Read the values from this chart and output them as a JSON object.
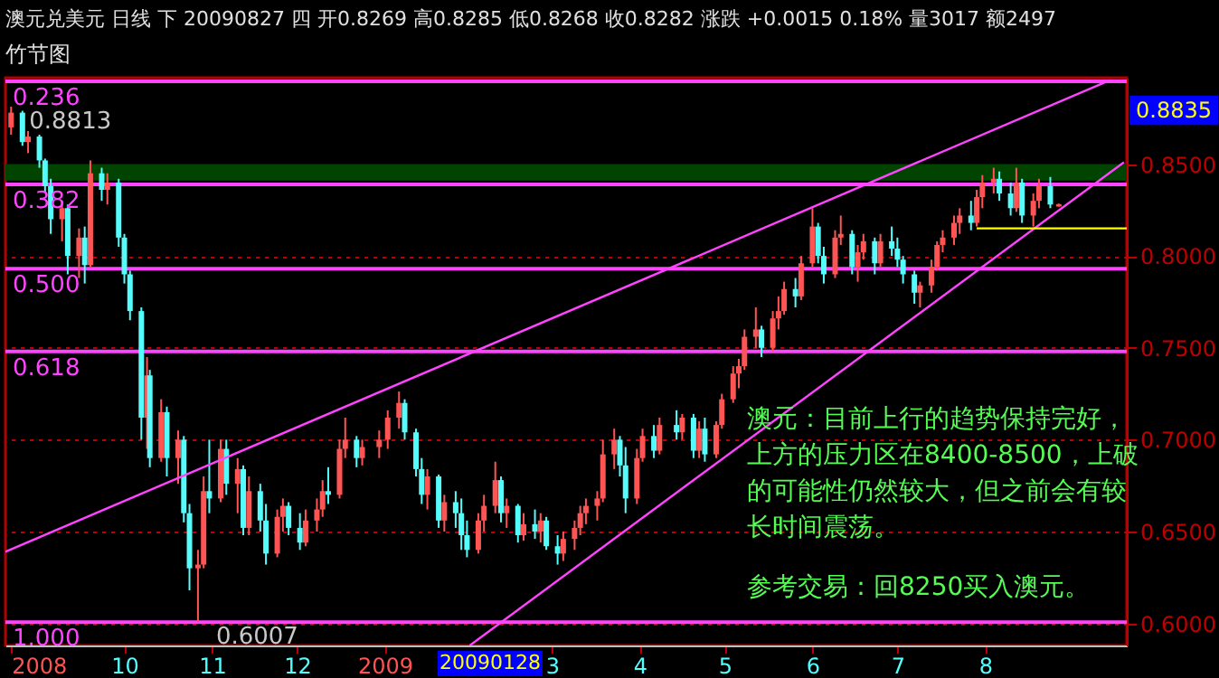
{
  "chart_data": {
    "type": "candlestick",
    "title": "澳元兑美元  日线  下  20090827  四  开0.8269 高0.8285 低0.8268 收0.8282 涨跌  +0.0015  0.18% 量3017 额2497",
    "subtitle": "竹节图",
    "x": [
      "2008-08-22",
      "2008-08-26",
      "2008-08-28",
      "2008-09-01",
      "2008-09-03",
      "2008-09-05",
      "2008-09-09",
      "2008-09-11",
      "2008-09-15",
      "2008-09-17",
      "2008-09-19",
      "2008-09-23",
      "2008-09-25",
      "2008-09-29",
      "2008-10-01",
      "2008-10-03",
      "2008-10-07",
      "2008-10-09",
      "2008-10-10",
      "2008-10-14",
      "2008-10-16",
      "2008-10-20",
      "2008-10-22",
      "2008-10-24",
      "2008-10-27",
      "2008-10-29",
      "2008-10-31",
      "2008-11-04",
      "2008-11-06",
      "2008-11-10",
      "2008-11-12",
      "2008-11-14",
      "2008-11-18",
      "2008-11-20",
      "2008-11-24",
      "2008-11-26",
      "2008-11-28",
      "2008-12-02",
      "2008-12-04",
      "2008-12-08",
      "2008-12-10",
      "2008-12-12",
      "2008-12-16",
      "2008-12-18",
      "2008-12-22",
      "2008-12-24",
      "2008-12-30",
      "2009-01-02",
      "2009-01-06",
      "2009-01-08",
      "2009-01-12",
      "2009-01-14",
      "2009-01-16",
      "2009-01-20",
      "2009-01-22",
      "2009-01-26",
      "2009-01-28",
      "2009-01-30",
      "2009-02-03",
      "2009-02-05",
      "2009-02-09",
      "2009-02-11",
      "2009-02-13",
      "2009-02-17",
      "2009-02-19",
      "2009-02-23",
      "2009-02-25",
      "2009-02-27",
      "2009-03-03",
      "2009-03-05",
      "2009-03-09",
      "2009-03-11",
      "2009-03-13",
      "2009-03-17",
      "2009-03-19",
      "2009-03-23",
      "2009-03-25",
      "2009-03-27",
      "2009-03-31",
      "2009-04-02",
      "2009-04-06",
      "2009-04-08",
      "2009-04-14",
      "2009-04-16",
      "2009-04-20",
      "2009-04-22",
      "2009-04-24",
      "2009-04-28",
      "2009-04-30",
      "2009-05-04",
      "2009-05-06",
      "2009-05-08",
      "2009-05-12",
      "2009-05-14",
      "2009-05-18",
      "2009-05-20",
      "2009-05-22",
      "2009-05-26",
      "2009-05-28",
      "2009-06-01",
      "2009-06-03",
      "2009-06-05",
      "2009-06-09",
      "2009-06-11",
      "2009-06-15",
      "2009-06-17",
      "2009-06-19",
      "2009-06-23",
      "2009-06-25",
      "2009-06-29",
      "2009-07-01",
      "2009-07-03",
      "2009-07-07",
      "2009-07-09",
      "2009-07-13",
      "2009-07-15",
      "2009-07-17",
      "2009-07-21",
      "2009-07-23",
      "2009-07-27",
      "2009-07-29",
      "2009-07-31",
      "2009-08-04",
      "2009-08-06",
      "2009-08-10",
      "2009-08-12",
      "2009-08-14",
      "2009-08-18",
      "2009-08-20",
      "2009-08-24",
      "2009-08-27"
    ],
    "ohlc": [
      [
        0.87,
        0.8813,
        0.866,
        0.878
      ],
      [
        0.878,
        0.879,
        0.86,
        0.862
      ],
      [
        0.862,
        0.868,
        0.856,
        0.865
      ],
      [
        0.865,
        0.866,
        0.848,
        0.852
      ],
      [
        0.852,
        0.853,
        0.835,
        0.838
      ],
      [
        0.838,
        0.842,
        0.812,
        0.82
      ],
      [
        0.82,
        0.83,
        0.808,
        0.826
      ],
      [
        0.826,
        0.828,
        0.79,
        0.8
      ],
      [
        0.8,
        0.815,
        0.788,
        0.81
      ],
      [
        0.81,
        0.816,
        0.785,
        0.795
      ],
      [
        0.795,
        0.852,
        0.794,
        0.845
      ],
      [
        0.845,
        0.848,
        0.83,
        0.836
      ],
      [
        0.836,
        0.845,
        0.828,
        0.84
      ],
      [
        0.84,
        0.842,
        0.805,
        0.81
      ],
      [
        0.81,
        0.812,
        0.785,
        0.79
      ],
      [
        0.79,
        0.792,
        0.765,
        0.77
      ],
      [
        0.77,
        0.772,
        0.7,
        0.712
      ],
      [
        0.712,
        0.745,
        0.695,
        0.735
      ],
      [
        0.735,
        0.738,
        0.685,
        0.69
      ],
      [
        0.69,
        0.722,
        0.688,
        0.715
      ],
      [
        0.715,
        0.718,
        0.68,
        0.69
      ],
      [
        0.69,
        0.705,
        0.676,
        0.7
      ],
      [
        0.7,
        0.702,
        0.655,
        0.66
      ],
      [
        0.66,
        0.665,
        0.618,
        0.63
      ],
      [
        0.63,
        0.64,
        0.6007,
        0.632
      ],
      [
        0.632,
        0.68,
        0.63,
        0.672
      ],
      [
        0.672,
        0.7,
        0.66,
        0.668
      ],
      [
        0.668,
        0.7,
        0.666,
        0.695
      ],
      [
        0.695,
        0.7,
        0.67,
        0.676
      ],
      [
        0.676,
        0.69,
        0.66,
        0.684
      ],
      [
        0.684,
        0.686,
        0.648,
        0.652
      ],
      [
        0.652,
        0.68,
        0.648,
        0.672
      ],
      [
        0.672,
        0.676,
        0.65,
        0.656
      ],
      [
        0.656,
        0.665,
        0.632,
        0.638
      ],
      [
        0.638,
        0.662,
        0.636,
        0.658
      ],
      [
        0.658,
        0.668,
        0.65,
        0.664
      ],
      [
        0.664,
        0.666,
        0.648,
        0.652
      ],
      [
        0.652,
        0.66,
        0.64,
        0.644
      ],
      [
        0.644,
        0.662,
        0.642,
        0.656
      ],
      [
        0.656,
        0.668,
        0.65,
        0.662
      ],
      [
        0.662,
        0.678,
        0.658,
        0.672
      ],
      [
        0.672,
        0.685,
        0.665,
        0.67
      ],
      [
        0.67,
        0.7,
        0.668,
        0.695
      ],
      [
        0.695,
        0.712,
        0.69,
        0.7
      ],
      [
        0.7,
        0.702,
        0.685,
        0.69
      ],
      [
        0.69,
        0.7,
        0.686,
        0.696
      ],
      [
        0.696,
        0.705,
        0.69,
        0.7
      ],
      [
        0.7,
        0.716,
        0.695,
        0.712
      ],
      [
        0.712,
        0.7262,
        0.706,
        0.72
      ],
      [
        0.72,
        0.722,
        0.7,
        0.704
      ],
      [
        0.704,
        0.706,
        0.68,
        0.684
      ],
      [
        0.684,
        0.69,
        0.665,
        0.67
      ],
      [
        0.67,
        0.684,
        0.662,
        0.68
      ],
      [
        0.68,
        0.681,
        0.652,
        0.656
      ],
      [
        0.656,
        0.67,
        0.65,
        0.666
      ],
      [
        0.666,
        0.672,
        0.652,
        0.66
      ],
      [
        0.66,
        0.668,
        0.64,
        0.648
      ],
      [
        0.648,
        0.656,
        0.636,
        0.64
      ],
      [
        0.64,
        0.66,
        0.638,
        0.656
      ],
      [
        0.656,
        0.67,
        0.65,
        0.664
      ],
      [
        0.664,
        0.688,
        0.66,
        0.678
      ],
      [
        0.678,
        0.68,
        0.655,
        0.66
      ],
      [
        0.66,
        0.668,
        0.652,
        0.664
      ],
      [
        0.664,
        0.665,
        0.644,
        0.648
      ],
      [
        0.648,
        0.66,
        0.645,
        0.654
      ],
      [
        0.654,
        0.662,
        0.646,
        0.65
      ],
      [
        0.65,
        0.66,
        0.644,
        0.656
      ],
      [
        0.656,
        0.658,
        0.64,
        0.642
      ],
      [
        0.642,
        0.648,
        0.632,
        0.638
      ],
      [
        0.638,
        0.65,
        0.634,
        0.646
      ],
      [
        0.646,
        0.656,
        0.64,
        0.652
      ],
      [
        0.652,
        0.664,
        0.648,
        0.66
      ],
      [
        0.66,
        0.668,
        0.654,
        0.664
      ],
      [
        0.664,
        0.672,
        0.656,
        0.668
      ],
      [
        0.668,
        0.7,
        0.666,
        0.692
      ],
      [
        0.692,
        0.706,
        0.684,
        0.7
      ],
      [
        0.7,
        0.702,
        0.68,
        0.686
      ],
      [
        0.686,
        0.696,
        0.66,
        0.668
      ],
      [
        0.668,
        0.695,
        0.665,
        0.69
      ],
      [
        0.69,
        0.706,
        0.688,
        0.702
      ],
      [
        0.702,
        0.708,
        0.69,
        0.694
      ],
      [
        0.694,
        0.712,
        0.692,
        0.708
      ],
      [
        0.708,
        0.716,
        0.7,
        0.704
      ],
      [
        0.704,
        0.714,
        0.7,
        0.712
      ],
      [
        0.712,
        0.714,
        0.69,
        0.694
      ],
      [
        0.694,
        0.71,
        0.69,
        0.706
      ],
      [
        0.706,
        0.712,
        0.688,
        0.692
      ],
      [
        0.692,
        0.71,
        0.69,
        0.708
      ],
      [
        0.708,
        0.725,
        0.706,
        0.722
      ],
      [
        0.722,
        0.74,
        0.72,
        0.736
      ],
      [
        0.736,
        0.744,
        0.728,
        0.74
      ],
      [
        0.74,
        0.76,
        0.738,
        0.756
      ],
      [
        0.756,
        0.772,
        0.75,
        0.76
      ],
      [
        0.76,
        0.762,
        0.745,
        0.75
      ],
      [
        0.75,
        0.77,
        0.748,
        0.766
      ],
      [
        0.766,
        0.778,
        0.76,
        0.77
      ],
      [
        0.77,
        0.786,
        0.768,
        0.782
      ],
      [
        0.782,
        0.788,
        0.772,
        0.778
      ],
      [
        0.778,
        0.8,
        0.776,
        0.796
      ],
      [
        0.796,
        0.826,
        0.794,
        0.816
      ],
      [
        0.816,
        0.818,
        0.796,
        0.8
      ],
      [
        0.8,
        0.805,
        0.785,
        0.79
      ],
      [
        0.79,
        0.814,
        0.788,
        0.81
      ],
      [
        0.81,
        0.822,
        0.806,
        0.812
      ],
      [
        0.812,
        0.814,
        0.79,
        0.794
      ],
      [
        0.794,
        0.806,
        0.786,
        0.802
      ],
      [
        0.802,
        0.812,
        0.798,
        0.808
      ],
      [
        0.808,
        0.81,
        0.79,
        0.796
      ],
      [
        0.796,
        0.812,
        0.794,
        0.808
      ],
      [
        0.808,
        0.816,
        0.8,
        0.804
      ],
      [
        0.804,
        0.81,
        0.794,
        0.798
      ],
      [
        0.798,
        0.8,
        0.785,
        0.79
      ],
      [
        0.79,
        0.792,
        0.774,
        0.78
      ],
      [
        0.78,
        0.786,
        0.772,
        0.784
      ],
      [
        0.784,
        0.798,
        0.78,
        0.794
      ],
      [
        0.794,
        0.808,
        0.792,
        0.806
      ],
      [
        0.806,
        0.814,
        0.802,
        0.81
      ],
      [
        0.81,
        0.822,
        0.806,
        0.818
      ],
      [
        0.818,
        0.826,
        0.812,
        0.822
      ],
      [
        0.822,
        0.83,
        0.814,
        0.818
      ],
      [
        0.818,
        0.836,
        0.816,
        0.832
      ],
      [
        0.832,
        0.844,
        0.826,
        0.84
      ],
      [
        0.84,
        0.848,
        0.834,
        0.842
      ],
      [
        0.842,
        0.846,
        0.83,
        0.834
      ],
      [
        0.834,
        0.84,
        0.822,
        0.826
      ],
      [
        0.826,
        0.848,
        0.824,
        0.84
      ],
      [
        0.84,
        0.842,
        0.818,
        0.822
      ],
      [
        0.822,
        0.834,
        0.816,
        0.83
      ],
      [
        0.83,
        0.842,
        0.826,
        0.838
      ],
      [
        0.838,
        0.843,
        0.826,
        0.828
      ],
      [
        0.8269,
        0.8285,
        0.8268,
        0.8282
      ]
    ],
    "colors": [
      "#ff5454",
      "#54fcfc",
      "#ff5454",
      "#54fcfc",
      "#54fcfc",
      "#54fcfc",
      "#ff5454",
      "#54fcfc",
      "#ff5454",
      "#54fcfc",
      "#ff5454",
      "#54fcfc",
      "#ff5454",
      "#54fcfc",
      "#54fcfc",
      "#54fcfc",
      "#54fcfc",
      "#ff5454",
      "#54fcfc",
      "#ff5454",
      "#54fcfc",
      "#ff5454",
      "#54fcfc",
      "#54fcfc",
      "#ff5454",
      "#ff5454",
      "#54fcfc",
      "#ff5454",
      "#54fcfc",
      "#ff5454",
      "#54fcfc",
      "#ff5454",
      "#54fcfc",
      "#54fcfc",
      "#ff5454",
      "#ff5454",
      "#54fcfc",
      "#54fcfc",
      "#ff5454",
      "#ff5454",
      "#ff5454",
      "#54fcfc",
      "#ff5454",
      "#ff5454",
      "#54fcfc",
      "#ff5454",
      "#ff5454",
      "#ff5454",
      "#ff5454",
      "#54fcfc",
      "#54fcfc",
      "#54fcfc",
      "#ff5454",
      "#54fcfc",
      "#ff5454",
      "#54fcfc",
      "#54fcfc",
      "#54fcfc",
      "#ff5454",
      "#ff5454",
      "#ff5454",
      "#54fcfc",
      "#ff5454",
      "#54fcfc",
      "#ff5454",
      "#54fcfc",
      "#ff5454",
      "#54fcfc",
      "#54fcfc",
      "#ff5454",
      "#ff5454",
      "#ff5454",
      "#ff5454",
      "#ff5454",
      "#ff5454",
      "#ff5454",
      "#54fcfc",
      "#54fcfc",
      "#ff5454",
      "#ff5454",
      "#54fcfc",
      "#ff5454",
      "#54fcfc",
      "#ff5454",
      "#54fcfc",
      "#ff5454",
      "#54fcfc",
      "#ff5454",
      "#ff5454",
      "#ff5454",
      "#ff5454",
      "#ff5454",
      "#ff5454",
      "#54fcfc",
      "#ff5454",
      "#ff5454",
      "#ff5454",
      "#54fcfc",
      "#ff5454",
      "#ff5454",
      "#54fcfc",
      "#54fcfc",
      "#ff5454",
      "#ff5454",
      "#54fcfc",
      "#ff5454",
      "#ff5454",
      "#54fcfc",
      "#ff5454",
      "#54fcfc",
      "#54fcfc",
      "#54fcfc",
      "#54fcfc",
      "#ff5454",
      "#ff5454",
      "#ff5454",
      "#ff5454",
      "#ff5454",
      "#ff5454",
      "#54fcfc",
      "#ff5454",
      "#ff5454",
      "#ff5454",
      "#54fcfc",
      "#54fcfc",
      "#ff5454",
      "#54fcfc",
      "#ff5454",
      "#ff5454",
      "#54fcfc",
      "#ff5454"
    ],
    "series": [
      {
        "type": "line",
        "color": "#ff44ff",
        "x": [
          "2008-08-20",
          "2009-09-13"
        ],
        "values": [
          0.639,
          0.895
        ]
      },
      {
        "type": "line",
        "color": "#ff44ff",
        "x": [
          "2009-01-31",
          "2009-09-19"
        ],
        "values": [
          0.588,
          0.851
        ]
      },
      {
        "type": "line",
        "color": "#ffff00",
        "x": [
          "2009-07-29",
          "2009-09-20"
        ],
        "values": [
          0.815,
          0.815
        ]
      }
    ],
    "xlim": [
      "2008-08-20",
      "2009-09-20"
    ],
    "ylim": [
      0.588,
      0.897
    ],
    "xticks": [
      {
        "value": "2008-08-22",
        "label": "2008"
      },
      {
        "value": "2008-10-01",
        "label": "10"
      },
      {
        "value": "2008-11-01",
        "label": "11"
      },
      {
        "value": "2008-12-01",
        "label": "12"
      },
      {
        "value": "2009-01-01",
        "label": "2009"
      },
      {
        "value": "2009-03-01",
        "label": "3"
      },
      {
        "value": "2009-04-01",
        "label": "4"
      },
      {
        "value": "2009-05-01",
        "label": "5"
      },
      {
        "value": "2009-06-01",
        "label": "6"
      },
      {
        "value": "2009-07-01",
        "label": "7"
      },
      {
        "value": "2009-08-01",
        "label": "8"
      }
    ],
    "yticks": [
      {
        "value": 0.6,
        "label": "0.6000"
      },
      {
        "value": 0.65,
        "label": "0.6500"
      },
      {
        "value": 0.7,
        "label": "0.7000"
      },
      {
        "value": 0.75,
        "label": "0.7500"
      },
      {
        "value": 0.8,
        "label": "0.8000"
      },
      {
        "value": 0.85,
        "label": "0.8500"
      }
    ],
    "grid": "y",
    "ref_lines": [
      {
        "axis": "y",
        "value": 0.895,
        "color": "#ff44ff"
      },
      {
        "axis": "y",
        "value": 0.839,
        "color": "#ff44ff"
      },
      {
        "axis": "y",
        "value": 0.793,
        "color": "#ff44ff"
      },
      {
        "axis": "y",
        "value": 0.748,
        "color": "#ff44ff"
      },
      {
        "axis": "y",
        "value": 0.6007,
        "color": "#ff44ff"
      }
    ],
    "bands": [
      {
        "axis": "y",
        "from": 0.841,
        "to": 0.85,
        "color": "#004400"
      }
    ],
    "annotations": [
      {
        "text": "0.236",
        "x": "2008-08-20",
        "y": 0.895
      },
      {
        "text": "0.382",
        "x": "2008-08-20",
        "y": 0.839
      },
      {
        "text": "0.500",
        "x": "2008-08-20",
        "y": 0.793
      },
      {
        "text": "0.618",
        "x": "2008-08-20",
        "y": 0.748
      },
      {
        "text": "1.000",
        "x": "2008-08-20",
        "y": 0.6007
      },
      {
        "text": "0.8813",
        "x": "2008-08-22",
        "y": 0.8813
      },
      {
        "text": "0.6007",
        "x": "2008-10-27",
        "y": 0.6007
      },
      "0.8835",
      "20090128",
      "澳元：目前上行的趋势保持完好，",
      "上方的压力区在8400-8500，上破",
      "的可能性仍然较大，但之前会有较",
      "长时间震荡。",
      "参考交易：回8250买入澳元。"
    ]
  }
}
